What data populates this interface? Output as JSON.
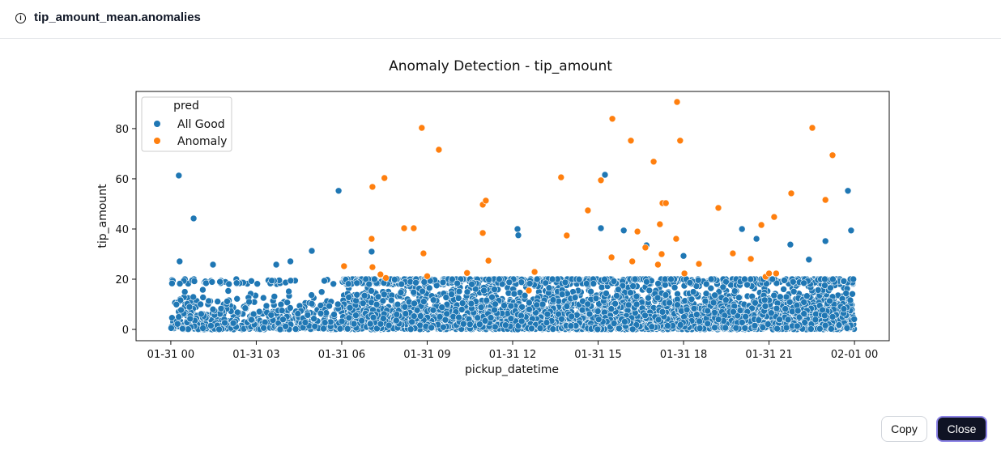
{
  "header": {
    "title": "tip_amount_mean.anomalies",
    "icon": "info-icon"
  },
  "buttons": {
    "copy": "Copy",
    "close": "Close"
  },
  "chart_data": {
    "type": "scatter",
    "title": "Anomaly Detection - tip_amount",
    "xlabel": "pickup_datetime",
    "ylabel": "tip_amount",
    "x_unit": "hours since 01-31 00:00",
    "xlim": [
      -1.22,
      25.22
    ],
    "ylim": [
      -4.5,
      94.8
    ],
    "x_ticks": [
      {
        "v": 0,
        "label": "01-31 00"
      },
      {
        "v": 3,
        "label": "01-31 03"
      },
      {
        "v": 6,
        "label": "01-31 06"
      },
      {
        "v": 9,
        "label": "01-31 09"
      },
      {
        "v": 12,
        "label": "01-31 12"
      },
      {
        "v": 15,
        "label": "01-31 15"
      },
      {
        "v": 18,
        "label": "01-31 18"
      },
      {
        "v": 21,
        "label": "01-31 21"
      },
      {
        "v": 24,
        "label": "02-01 00"
      }
    ],
    "y_ticks": [
      0,
      20,
      40,
      60,
      80
    ],
    "legend": {
      "title": "pred",
      "placement": "top-left",
      "entries": [
        {
          "name": "All Good",
          "color": "#1f77b4"
        },
        {
          "name": "Anomaly",
          "color": "#ff7f0e"
        }
      ]
    },
    "series": [
      {
        "name": "All Good",
        "color": "#1f77b4",
        "bulk": {
          "count": 5200,
          "x_range": [
            0,
            24
          ],
          "y_range": [
            0,
            20
          ],
          "note": "dense cloud of trips"
        },
        "points": [
          [
            0.28,
            61.3
          ],
          [
            0.8,
            44.2
          ],
          [
            5.89,
            55.2
          ],
          [
            15.24,
            61.6
          ],
          [
            23.77,
            55.2
          ],
          [
            23.88,
            39.4
          ],
          [
            20.05,
            40
          ],
          [
            12.17,
            40
          ],
          [
            4.95,
            31.3
          ],
          [
            15.1,
            40.3
          ],
          [
            15.9,
            39.4
          ],
          [
            20.56,
            36.1
          ],
          [
            22.98,
            35.2
          ],
          [
            0.31,
            27.1
          ],
          [
            1.48,
            25.8
          ],
          [
            7.05,
            31
          ],
          [
            12.2,
            37.5
          ],
          [
            16.7,
            33.5
          ],
          [
            18.0,
            29.3
          ],
          [
            21.75,
            33.8
          ],
          [
            22.4,
            27.8
          ],
          [
            4.2,
            27.1
          ],
          [
            3.7,
            25.8
          ]
        ]
      },
      {
        "name": "Anomaly",
        "color": "#ff7f0e",
        "points": [
          [
            6.08,
            25.2
          ],
          [
            7.08,
            56.8
          ],
          [
            7.05,
            36.1
          ],
          [
            7.08,
            24.8
          ],
          [
            7.5,
            60.3
          ],
          [
            7.36,
            21.9
          ],
          [
            7.55,
            20.5
          ],
          [
            8.19,
            40.3
          ],
          [
            8.53,
            40.3
          ],
          [
            8.81,
            80.3
          ],
          [
            8.87,
            30.3
          ],
          [
            9.41,
            71.6
          ],
          [
            9.0,
            21.2
          ],
          [
            10.95,
            49.7
          ],
          [
            11.06,
            51.3
          ],
          [
            10.95,
            38.4
          ],
          [
            11.15,
            27.4
          ],
          [
            12.57,
            15.5
          ],
          [
            12.77,
            22.9
          ],
          [
            13.7,
            60.6
          ],
          [
            13.9,
            37.4
          ],
          [
            14.64,
            47.4
          ],
          [
            15.1,
            59.4
          ],
          [
            15.5,
            83.9
          ],
          [
            15.47,
            28.7
          ],
          [
            16.15,
            75.2
          ],
          [
            16.2,
            27.1
          ],
          [
            16.38,
            39
          ],
          [
            16.66,
            32.6
          ],
          [
            16.95,
            66.8
          ],
          [
            17.17,
            41.9
          ],
          [
            17.26,
            50.3
          ],
          [
            17.38,
            50.3
          ],
          [
            17.1,
            25.8
          ],
          [
            17.23,
            30
          ],
          [
            17.77,
            90.6
          ],
          [
            17.88,
            75.2
          ],
          [
            17.74,
            36.1
          ],
          [
            18.03,
            22.3
          ],
          [
            18.54,
            26.1
          ],
          [
            19.22,
            48.4
          ],
          [
            19.73,
            30.3
          ],
          [
            20.36,
            28.1
          ],
          [
            20.73,
            41.6
          ],
          [
            21.18,
            44.8
          ],
          [
            21.78,
            54.2
          ],
          [
            20.88,
            21
          ],
          [
            21.0,
            22.3
          ],
          [
            21.25,
            22.3
          ],
          [
            22.52,
            80.3
          ],
          [
            22.98,
            51.6
          ],
          [
            23.23,
            69.4
          ],
          [
            10.4,
            22.5
          ]
        ]
      }
    ]
  }
}
